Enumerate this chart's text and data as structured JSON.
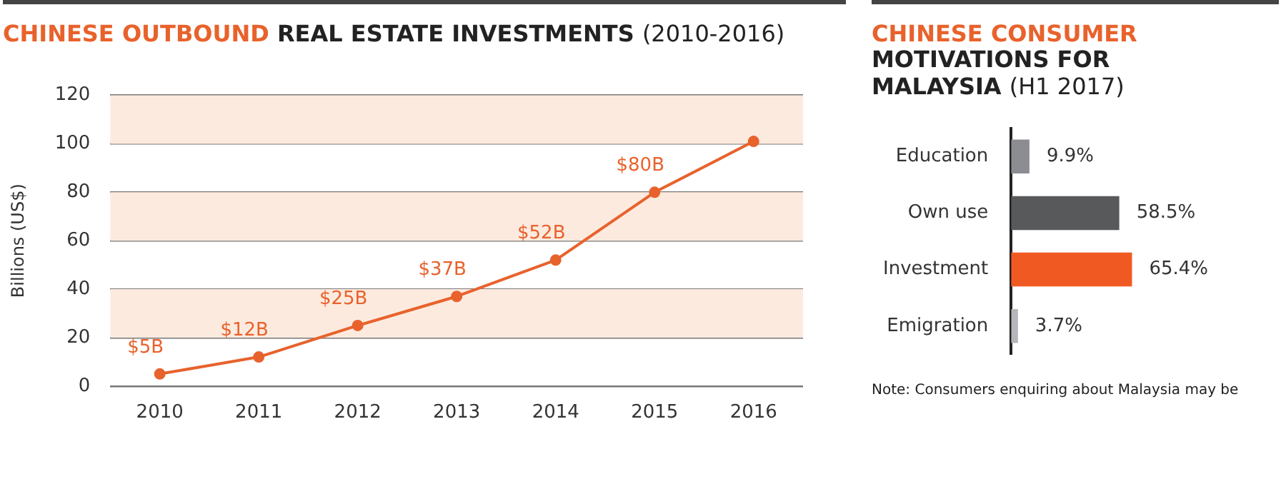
{
  "chart_data": [
    {
      "type": "line",
      "title": "CHINESE OUTBOUND REAL ESTATE INVESTMENTS (2010-2016)",
      "ylabel": "Billions (US$)",
      "categories": [
        "2010",
        "2011",
        "2012",
        "2013",
        "2014",
        "2015",
        "2016"
      ],
      "values": [
        5,
        12,
        25,
        37,
        52,
        80,
        101
      ],
      "color": "#e8622c",
      "value_labels": [
        "$5B",
        "$12B",
        "$25B",
        "$37B",
        "$52B",
        "$80B",
        null
      ],
      "ylim": [
        0,
        120
      ],
      "yticks": [
        0,
        20,
        40,
        60,
        80,
        100,
        120
      ],
      "grid": "y",
      "marker": "circle",
      "bands": [
        {
          "axis": "y",
          "from": 20,
          "to": 40,
          "color": "#fdeadf"
        },
        {
          "axis": "y",
          "from": 60,
          "to": 80,
          "color": "#fdeadf"
        },
        {
          "axis": "y",
          "from": 100,
          "to": 120,
          "color": "#fdeadf"
        }
      ]
    },
    {
      "type": "bar",
      "orientation": "horizontal",
      "title": "CHINESE CONSUMER MOTIVATIONS FOR MALAYSIA (H1 2017)",
      "categories": [
        "Education",
        "Own use",
        "Investment",
        "Emigration"
      ],
      "values": [
        9.9,
        58.5,
        65.4,
        3.7
      ],
      "colors": [
        "#8c8d92",
        "#58595b",
        "#f05a22",
        "#b5b6ba"
      ],
      "value_labels": [
        "9.9%",
        "58.5%",
        "65.4%",
        "3.7%"
      ],
      "annotations": [
        "Note: Consumers enquiring about Malaysia may be"
      ]
    }
  ]
}
